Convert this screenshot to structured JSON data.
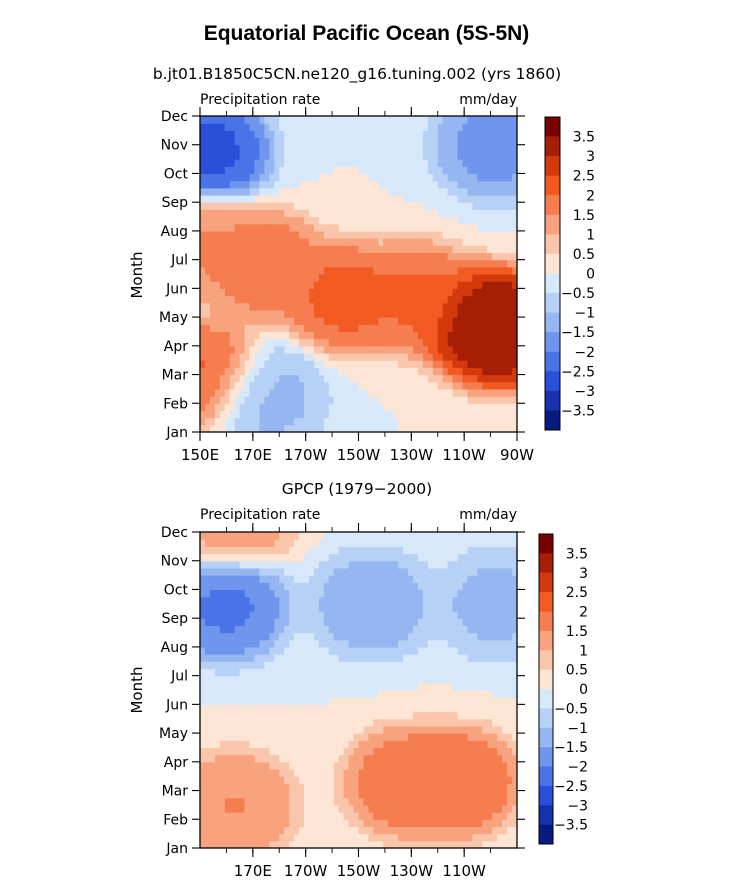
{
  "title": "Equatorial Pacific Ocean (5S-5N)",
  "colorbar": {
    "labels": [
      "3.5",
      "3",
      "2.5",
      "2",
      "1.5",
      "1",
      "0.5",
      "0",
      "−0.5",
      "−1",
      "−1.5",
      "−2",
      "−2.5",
      "−3",
      "−3.5"
    ],
    "colors": [
      "#7a0000",
      "#a71e06",
      "#d23a0d",
      "#f25a22",
      "#f67d50",
      "#f8a27e",
      "#fac6ab",
      "#fde5d6",
      "#d8e8fb",
      "#b6d0f6",
      "#95b6f1",
      "#6f96ec",
      "#4a73e7",
      "#2a4fd8",
      "#1632ad",
      "#071a80"
    ]
  },
  "chart_data": [
    {
      "type": "heatmap",
      "subtitle": "b.jt01.B1850C5CN.ne120_g16.tuning.002 (yrs 1860)",
      "left_label": "Precipitation rate",
      "right_label": "mm/day",
      "ylabel": "Month",
      "x_ticks": [
        "150E",
        "170E",
        "170W",
        "150W",
        "130W",
        "110W",
        "90W"
      ],
      "y_ticks": [
        "Jan",
        "Feb",
        "Mar",
        "Apr",
        "May",
        "Jun",
        "Jul",
        "Aug",
        "Sep",
        "Oct",
        "Nov",
        "Dec"
      ],
      "xlim": [
        "150E",
        "90W"
      ],
      "features": [
        {
          "lon": 152,
          "month": 2.0,
          "value": 2.2
        },
        {
          "lon": 152,
          "month": 6.5,
          "value": 1.6
        },
        {
          "lon": 175,
          "month": 5.8,
          "value": 2.0
        },
        {
          "lon": 205,
          "month": 4.7,
          "value": 2.3
        },
        {
          "lon": 232,
          "month": 4.7,
          "value": 2.2
        },
        {
          "lon": 258,
          "month": 3.8,
          "value": 3.6
        },
        {
          "lon": 265,
          "month": 3.5,
          "value": 3.6
        },
        {
          "lon": 153,
          "month": 9.8,
          "value": -2.8
        },
        {
          "lon": 262,
          "month": 10.0,
          "value": -1.8
        },
        {
          "lon": 175,
          "month": 1.2,
          "value": -1.2
        }
      ]
    },
    {
      "type": "heatmap",
      "subtitle": "GPCP (1979−2000)",
      "left_label": "Precipitation rate",
      "right_label": "mm/day",
      "ylabel": "Month",
      "x_ticks": [
        "170E",
        "170W",
        "150W",
        "130W",
        "110W"
      ],
      "y_ticks": [
        "Jan",
        "Feb",
        "Mar",
        "Apr",
        "May",
        "Jun",
        "Jul",
        "Aug",
        "Sep",
        "Oct",
        "Nov",
        "Dec"
      ],
      "xlim": [
        "150E",
        "90W"
      ],
      "features": [
        {
          "lon": 163,
          "month": 1.5,
          "value": 1.6
        },
        {
          "lon": 163,
          "month": 11.5,
          "value": 1.4
        },
        {
          "lon": 228,
          "month": 2.3,
          "value": 2.0
        },
        {
          "lon": 248,
          "month": 2.3,
          "value": 2.1
        },
        {
          "lon": 160,
          "month": 8.4,
          "value": -2.2
        },
        {
          "lon": 215,
          "month": 8.5,
          "value": -1.4
        },
        {
          "lon": 262,
          "month": 8.5,
          "value": -1.2
        }
      ]
    }
  ]
}
